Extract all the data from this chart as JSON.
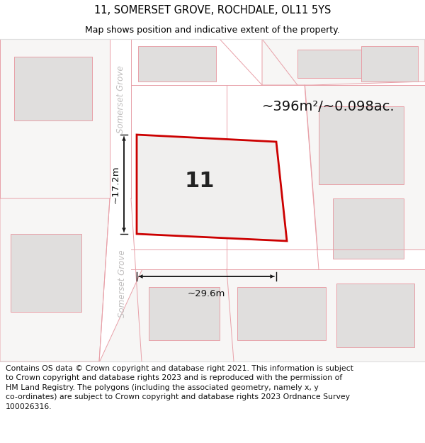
{
  "title_line1": "11, SOMERSET GROVE, ROCHDALE, OL11 5YS",
  "title_line2": "Map shows position and indicative extent of the property.",
  "footer_text": "Contains OS data © Crown copyright and database right 2021. This information is subject\nto Crown copyright and database rights 2023 and is reproduced with the permission of\nHM Land Registry. The polygons (including the associated geometry, namely x, y\nco-ordinates) are subject to Crown copyright and database rights 2023 Ordnance Survey\n100026316.",
  "area_text": "~396m²/~0.098ac.",
  "property_number": "11",
  "dim_width": "~29.6m",
  "dim_height": "~17.2m",
  "street_label_top": "Somerset Grove",
  "street_label_bottom": "Somerset Grove",
  "map_bg": "#f7f6f5",
  "road_fill": "#ffffff",
  "plot_stroke": "#e8a0a8",
  "building_fill": "#e0dedd",
  "highlight_fill": "#f0efee",
  "highlight_stroke": "#cc0000",
  "dim_color": "#111111",
  "street_color": "#c0bebe",
  "area_color": "#111111",
  "number_color": "#222222",
  "footer_bg": "#ffffff",
  "title_bg": "#ffffff",
  "sep_color": "#dddddd",
  "title_fontsize": 10.5,
  "subtitle_fontsize": 9.0,
  "footer_fontsize": 7.8,
  "area_fontsize": 14,
  "number_fontsize": 22,
  "dim_fontsize": 9.5,
  "street_fontsize": 8.5
}
